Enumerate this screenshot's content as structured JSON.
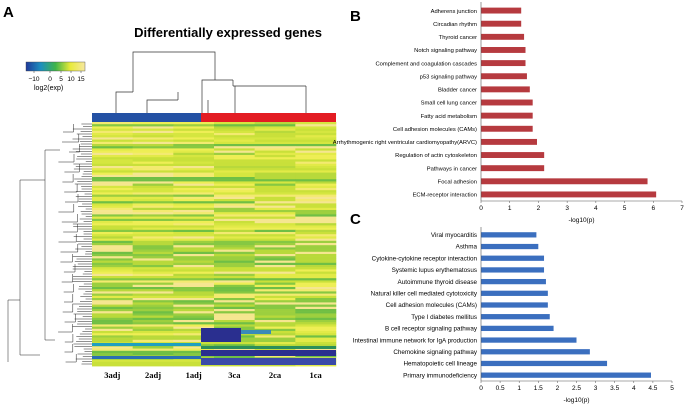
{
  "panels": {
    "a": {
      "letter": "A",
      "title": "Differentially expressed genes",
      "colorbar": {
        "ticks": [
          "−10",
          "0",
          "5",
          "10",
          "15"
        ],
        "label": "log2(exp)"
      },
      "columns": [
        "3adj",
        "2adj",
        "1adj",
        "3ca",
        "2ca",
        "1ca"
      ],
      "group_colors": {
        "adjacent": "#2451a4",
        "cancer": "#e31c23"
      }
    },
    "b": {
      "letter": "B"
    },
    "c": {
      "letter": "C"
    }
  },
  "chart_data": [
    {
      "panel": "B",
      "type": "bar",
      "orientation": "horizontal",
      "color": "#b63a3f",
      "xlabel": "-log10(p)",
      "xlim": [
        0,
        7
      ],
      "xticks": [
        "0",
        "1",
        "2",
        "3",
        "4",
        "5",
        "6",
        "7"
      ],
      "categories": [
        "Adherens junction",
        "Circadian rhythm",
        "Thyroid cancer",
        "Notch signaling pathway",
        "Complement and coagulation cascades",
        "p53 signaling pathway",
        "Bladder cancer",
        "Small cell lung cancer",
        "Fatty acid metabolism",
        "Cell adhesion molecules (CAMs)",
        "Arrhythmogenic right ventricular cardiomyopathy(ARVC)",
        "Regulation of actin cytoskeleton",
        "Pathways in cancer",
        "Focal adhesion",
        "ECM-receptor interaction"
      ],
      "values": [
        1.4,
        1.4,
        1.5,
        1.55,
        1.55,
        1.6,
        1.7,
        1.8,
        1.8,
        1.8,
        1.95,
        2.2,
        2.2,
        5.8,
        6.1
      ]
    },
    {
      "panel": "C",
      "type": "bar",
      "orientation": "horizontal",
      "color": "#3b6fbf",
      "xlabel": "-log10(p)",
      "xlim": [
        0,
        5
      ],
      "xticks": [
        "0",
        "0.5",
        "1",
        "1.5",
        "2",
        "2.5",
        "3",
        "3.5",
        "4",
        "4.5",
        "5"
      ],
      "categories": [
        "Viral myocarditis",
        "Asthma",
        "Cytokine-cytokine receptor interaction",
        "Systemic lupus erythematosus",
        "Autoimmune thyroid disease",
        "Natural killer cell mediated cytotoxicity",
        "Cell adhesion molecules (CAMs)",
        "Type I diabetes mellitus",
        "B cell receptor signaling pathway",
        "Intestinal immune network for IgA production",
        "Chemokine signaling pathway",
        "Hematopoietic cell lineage",
        "Primary immunodeficiency"
      ],
      "values": [
        1.45,
        1.5,
        1.65,
        1.65,
        1.7,
        1.75,
        1.75,
        1.8,
        1.9,
        2.5,
        2.85,
        3.3,
        4.45
      ]
    }
  ]
}
